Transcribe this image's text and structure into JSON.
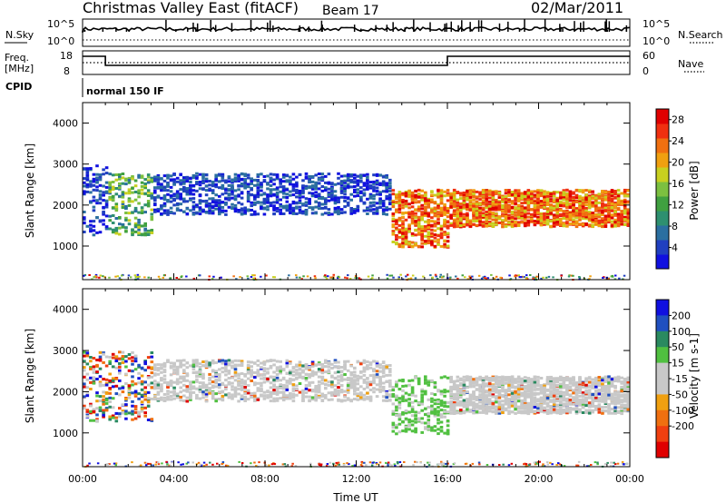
{
  "header": {
    "station": "Christmas Valley East (fitACF)",
    "beam": "Beam 17",
    "date": "02/Mar/2011"
  },
  "panels": {
    "nsky_label": "N.Sky",
    "nsky_ticks": [
      "10^5",
      "10^0"
    ],
    "nsearch_label": "N.Search",
    "nsearch_ticks": [
      "10^5",
      "10^0"
    ],
    "freq_label_1": "Freq.",
    "freq_label_2": "[MHz]",
    "freq_ticks": [
      "18",
      "8"
    ],
    "nave_label": "Nave",
    "nave_ticks": [
      "60",
      "0"
    ],
    "cpid_label": "CPID",
    "cpid_text": "normal 150 IF"
  },
  "colors": {
    "power": [
      "#1010e0",
      "#2040c0",
      "#2b6fa0",
      "#2e9070",
      "#40a040",
      "#7cc040",
      "#c8d020",
      "#f0a010",
      "#f07010",
      "#f03010",
      "#e00000"
    ],
    "velocity": [
      "#1010e0",
      "#2050c0",
      "#2a8a60",
      "#50c040",
      "#c8c8c8",
      "#c8c8c8",
      "#f0a010",
      "#f07010",
      "#f04010",
      "#e00000"
    ]
  },
  "chart_data": [
    {
      "type": "heatmap",
      "name_id": "power",
      "xlabel": "Time UT",
      "ylabel": "Slant Range [km]",
      "x_ticks": [
        "00:00",
        "04:00",
        "08:00",
        "12:00",
        "16:00",
        "20:00",
        "00:00"
      ],
      "xlim_hours": [
        0,
        24
      ],
      "y_ticks": [
        1000,
        2000,
        3000,
        4000
      ],
      "ylim_km": [
        180,
        4500
      ],
      "colorbar": {
        "label": "Power [dB]",
        "ticks": [
          4,
          8,
          12,
          16,
          20,
          24,
          28
        ],
        "range": [
          0,
          30
        ]
      },
      "echo_regions": [
        {
          "t_start": 0.0,
          "t_end": 1.0,
          "range_min": 1300,
          "range_max": 3000,
          "level": "weak-mid"
        },
        {
          "t_start": 1.0,
          "t_end": 3.0,
          "range_min": 1300,
          "range_max": 2800,
          "level": "mid"
        },
        {
          "t_start": 3.0,
          "t_end": 13.5,
          "range_min": 1800,
          "range_max": 2800,
          "level": "weak"
        },
        {
          "t_start": 13.5,
          "t_end": 16.0,
          "range_min": 1000,
          "range_max": 2400,
          "level": "strong"
        },
        {
          "t_start": 16.0,
          "t_end": 24.0,
          "range_min": 1500,
          "range_max": 2400,
          "level": "strong"
        }
      ]
    },
    {
      "type": "heatmap",
      "name_id": "velocity",
      "xlabel": "Time UT",
      "ylabel": "Slant Range [km]",
      "x_ticks": [
        "00:00",
        "04:00",
        "08:00",
        "12:00",
        "16:00",
        "20:00",
        "00:00"
      ],
      "xlim_hours": [
        0,
        24
      ],
      "y_ticks": [
        1000,
        2000,
        3000,
        4000
      ],
      "ylim_km": [
        180,
        4500
      ],
      "colorbar": {
        "label": "Velocity [m s-1]",
        "ticks": [
          200,
          100,
          50,
          15,
          -15,
          -50,
          -100,
          -200
        ]
      },
      "echo_regions": [
        {
          "t_start": 0.0,
          "t_end": 3.0,
          "range_min": 1300,
          "range_max": 3000,
          "velocity": "mixed"
        },
        {
          "t_start": 3.0,
          "t_end": 13.5,
          "range_min": 1800,
          "range_max": 2800,
          "velocity": "near-zero"
        },
        {
          "t_start": 13.5,
          "t_end": 16.0,
          "range_min": 1000,
          "range_max": 2400,
          "velocity": "positive"
        },
        {
          "t_start": 16.0,
          "t_end": 24.0,
          "range_min": 1500,
          "range_max": 2400,
          "velocity": "near-zero"
        }
      ]
    }
  ]
}
